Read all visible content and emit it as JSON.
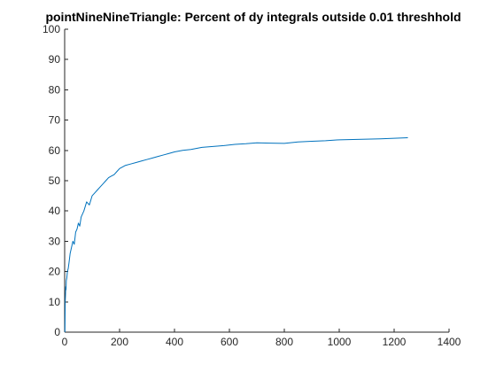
{
  "chart_data": {
    "type": "line",
    "title": "pointNineNineTriangle: Percent of dy integrals outside 0.01 threshhold",
    "xlabel": "",
    "ylabel": "",
    "xlim": [
      0,
      1400
    ],
    "ylim": [
      0,
      100
    ],
    "xticks": [
      0,
      200,
      400,
      600,
      800,
      1000,
      1200,
      1400
    ],
    "yticks": [
      0,
      10,
      20,
      30,
      40,
      50,
      60,
      70,
      80,
      90,
      100
    ],
    "grid": false,
    "colors": {
      "series": "#0072bd",
      "axis": "#262626"
    },
    "series": [
      {
        "name": "",
        "x": [
          1,
          2,
          3,
          4,
          5,
          6,
          8,
          10,
          13,
          16,
          20,
          25,
          30,
          35,
          40,
          45,
          50,
          55,
          60,
          70,
          80,
          90,
          100,
          110,
          120,
          130,
          140,
          150,
          160,
          170,
          180,
          190,
          200,
          220,
          240,
          260,
          280,
          300,
          320,
          340,
          360,
          380,
          400,
          430,
          460,
          500,
          540,
          580,
          620,
          660,
          700,
          750,
          800,
          850,
          900,
          950,
          1000,
          1050,
          1100,
          1150,
          1200,
          1250
        ],
        "y": [
          0,
          10,
          12,
          15,
          14,
          17,
          18,
          20,
          21,
          23,
          26,
          28,
          30,
          29,
          33,
          34,
          36,
          35,
          38,
          40,
          43,
          42,
          45,
          46,
          47,
          48,
          49,
          50,
          51,
          51.5,
          52,
          53,
          54,
          55,
          55.5,
          56,
          56.5,
          57,
          57.5,
          58,
          58.5,
          59,
          59.5,
          60,
          60.3,
          61,
          61.3,
          61.6,
          62,
          62.2,
          62.5,
          62.4,
          62.3,
          62.8,
          63,
          63.2,
          63.5,
          63.6,
          63.7,
          63.8,
          64,
          64.2
        ]
      }
    ]
  }
}
